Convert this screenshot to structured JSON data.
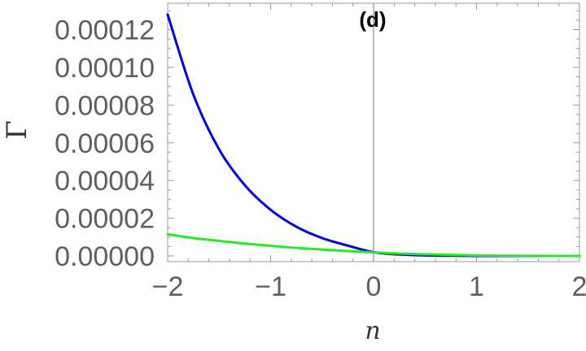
{
  "chart_data": {
    "type": "line",
    "panel_label": "(d)",
    "xlabel": "n",
    "ylabel": "Γ",
    "xlim": [
      -2,
      2
    ],
    "ylim": [
      -3e-06,
      0.000134
    ],
    "x_ticks": [
      -2,
      -1,
      0,
      1,
      2
    ],
    "x_tick_labels": [
      "−2",
      "−1",
      "0",
      "1",
      "2"
    ],
    "y_ticks": [
      0,
      2e-05,
      4e-05,
      6e-05,
      8e-05,
      0.0001,
      0.00012
    ],
    "y_tick_labels": [
      "0.00000",
      "0.00002",
      "0.00004",
      "0.00006",
      "0.00008",
      "0.00010",
      "0.00012"
    ],
    "grid": false,
    "series": [
      {
        "color": "#0000dd",
        "x": [
          -2.0,
          -1.75,
          -1.5,
          -1.25,
          -1.0,
          -0.75,
          -0.5,
          -0.25,
          0.0,
          0.25,
          0.5,
          0.75,
          1.0,
          1.25,
          1.5,
          1.75,
          2.0
        ],
        "y": [
          0.000128,
          8.55e-05,
          5.65e-05,
          3.75e-05,
          2.45e-05,
          1.55e-05,
          9.5e-06,
          5.5e-06,
          2e-06,
          8e-07,
          3e-07,
          1e-07,
          0.0,
          0.0,
          0.0,
          0.0,
          0.0
        ]
      },
      {
        "color": "#22ee22",
        "x": [
          -2.0,
          -1.75,
          -1.5,
          -1.25,
          -1.0,
          -0.75,
          -0.5,
          -0.25,
          0.0,
          0.25,
          0.5,
          0.75,
          1.0,
          1.25,
          1.5,
          1.75,
          2.0
        ],
        "y": [
          1.15e-05,
          9.5e-06,
          8e-06,
          6.6e-06,
          5.4e-06,
          4.3e-06,
          3.4e-06,
          2.6e-06,
          1.9e-06,
          1.3e-06,
          9e-07,
          6e-07,
          3e-07,
          2e-07,
          1e-07,
          0.0,
          0.0
        ]
      }
    ]
  }
}
